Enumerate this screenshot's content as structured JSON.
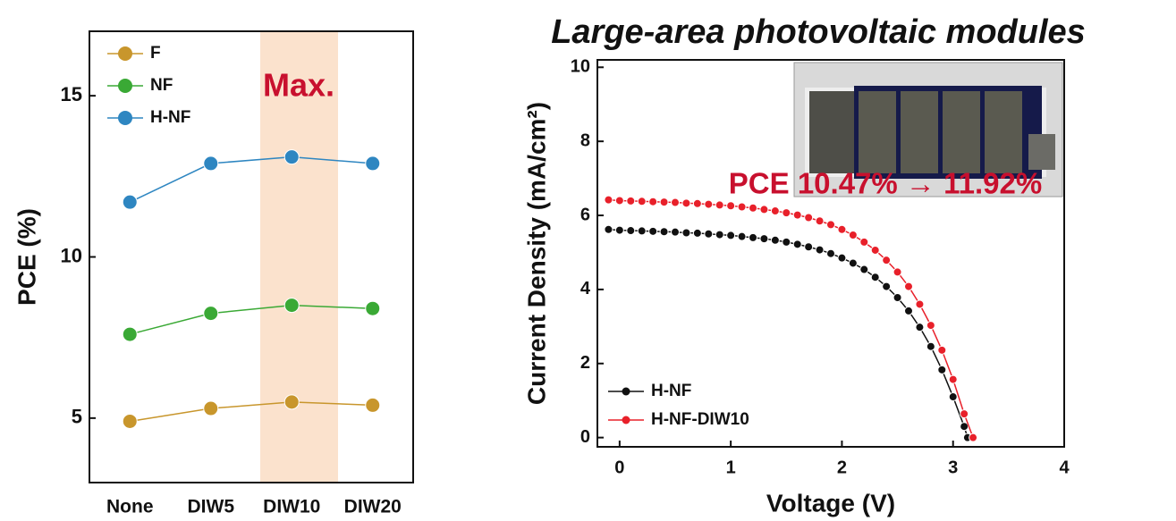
{
  "chart_data": [
    {
      "type": "line",
      "categories": [
        "None",
        "DIW5",
        "DIW10",
        "DIW20"
      ],
      "series": [
        {
          "name": "F",
          "color": "#c8962c",
          "values": [
            4.9,
            5.3,
            5.5,
            5.4
          ]
        },
        {
          "name": "NF",
          "color": "#3aa935",
          "values": [
            7.6,
            8.25,
            8.5,
            8.4
          ]
        },
        {
          "name": "H-NF",
          "color": "#2e86c1",
          "values": [
            11.7,
            12.9,
            13.1,
            12.9
          ]
        }
      ],
      "y_label": "PCE (%)",
      "annotation": "Max.",
      "ylim": [
        3,
        17
      ],
      "yticks": [
        5,
        10,
        15
      ],
      "legend": "upper-left"
    },
    {
      "type": "line",
      "title": "Large-area photovoltaic modules",
      "x_label": "Voltage (V)",
      "y_label": "Current Density (mA/cm²)",
      "annotation": "PCE 10.47% → 11.92%",
      "series": [
        {
          "name": "H-NF",
          "color": "#111111",
          "x": [
            -0.1,
            0,
            0.1,
            0.2,
            0.3,
            0.4,
            0.5,
            0.6,
            0.7,
            0.8,
            0.9,
            1.0,
            1.1,
            1.2,
            1.3,
            1.4,
            1.5,
            1.6,
            1.7,
            1.8,
            1.9,
            2.0,
            2.1,
            2.2,
            2.3,
            2.4,
            2.5,
            2.6,
            2.7,
            2.8,
            2.9,
            3.0,
            3.1,
            3.13
          ],
          "values": [
            5.62,
            5.6,
            5.59,
            5.58,
            5.57,
            5.56,
            5.55,
            5.53,
            5.52,
            5.5,
            5.48,
            5.46,
            5.43,
            5.4,
            5.37,
            5.33,
            5.28,
            5.22,
            5.15,
            5.07,
            4.97,
            4.85,
            4.71,
            4.54,
            4.33,
            4.08,
            3.78,
            3.42,
            2.98,
            2.46,
            1.83,
            1.1,
            0.3,
            0
          ]
        },
        {
          "name": "H-NF-DIW10",
          "color": "#e8202a",
          "x": [
            -0.1,
            0,
            0.1,
            0.2,
            0.3,
            0.4,
            0.5,
            0.6,
            0.7,
            0.8,
            0.9,
            1.0,
            1.1,
            1.2,
            1.3,
            1.4,
            1.5,
            1.6,
            1.7,
            1.8,
            1.9,
            2.0,
            2.1,
            2.2,
            2.3,
            2.4,
            2.5,
            2.6,
            2.7,
            2.8,
            2.9,
            3.0,
            3.1,
            3.18
          ],
          "values": [
            6.42,
            6.4,
            6.39,
            6.38,
            6.37,
            6.36,
            6.35,
            6.33,
            6.32,
            6.3,
            6.28,
            6.26,
            6.23,
            6.2,
            6.16,
            6.12,
            6.07,
            6.01,
            5.94,
            5.85,
            5.75,
            5.62,
            5.47,
            5.28,
            5.06,
            4.79,
            4.47,
            4.08,
            3.6,
            3.03,
            2.36,
            1.57,
            0.64,
            0
          ]
        }
      ],
      "xlim": [
        -0.2,
        4
      ],
      "xticks": [
        0,
        1,
        2,
        3,
        4
      ],
      "ylim": [
        -0.25,
        10.2
      ],
      "yticks": [
        0,
        2,
        4,
        6,
        8,
        10
      ],
      "legend": "lower-left"
    }
  ]
}
